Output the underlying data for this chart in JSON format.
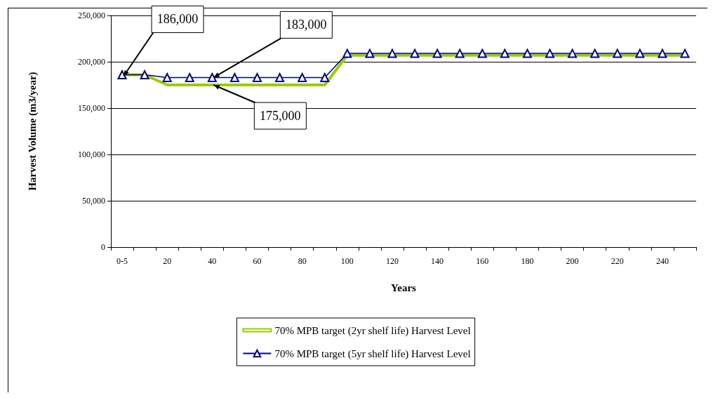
{
  "chart_data": {
    "type": "line",
    "xlabel": "Years",
    "ylabel": "Harvest Volume (m3/year)",
    "categories": [
      "0-5",
      null,
      "20",
      null,
      "40",
      null,
      "60",
      null,
      "80",
      null,
      "100",
      null,
      "120",
      null,
      "140",
      null,
      "160",
      null,
      "180",
      null,
      "200",
      null,
      "220",
      null,
      "240",
      null
    ],
    "series": [
      {
        "name": "70% MPB target (2yr shelf life) Harvest Level",
        "color": "#99cc00",
        "marker": "none",
        "values": [
          186000,
          186000,
          175000,
          175000,
          175000,
          175000,
          175000,
          175000,
          175000,
          175000,
          207000,
          207000,
          207000,
          207000,
          207000,
          207000,
          207000,
          207000,
          207000,
          207000,
          207000,
          207000,
          207000,
          207000,
          207000,
          207000
        ]
      },
      {
        "name": "70% MPB target (5yr shelf life) Harvest Level",
        "color": "#000080",
        "marker": "triangle",
        "values": [
          186000,
          186000,
          183000,
          183000,
          183000,
          183000,
          183000,
          183000,
          183000,
          183000,
          209000,
          209000,
          209000,
          209000,
          209000,
          209000,
          209000,
          209000,
          209000,
          209000,
          209000,
          209000,
          209000,
          209000,
          209000,
          209000
        ]
      }
    ],
    "ylim": [
      0,
      250000
    ],
    "yticks": [
      0,
      {
        "value": 50000,
        "label": "50,000"
      },
      {
        "value": 100000,
        "label": "100,000"
      },
      {
        "value": 150000,
        "label": "150,000"
      },
      {
        "value": 200000,
        "label": "200,000"
      },
      {
        "value": 250000,
        "label": "250,000"
      }
    ],
    "grid": "y",
    "legend": "bottom",
    "annotations": [
      {
        "text": "186,000",
        "x": "0-5",
        "y": 186000
      },
      {
        "text": "183,000",
        "x": "40",
        "y": 183000
      },
      {
        "text": "175,000",
        "x": "40",
        "y": 175000
      }
    ]
  }
}
